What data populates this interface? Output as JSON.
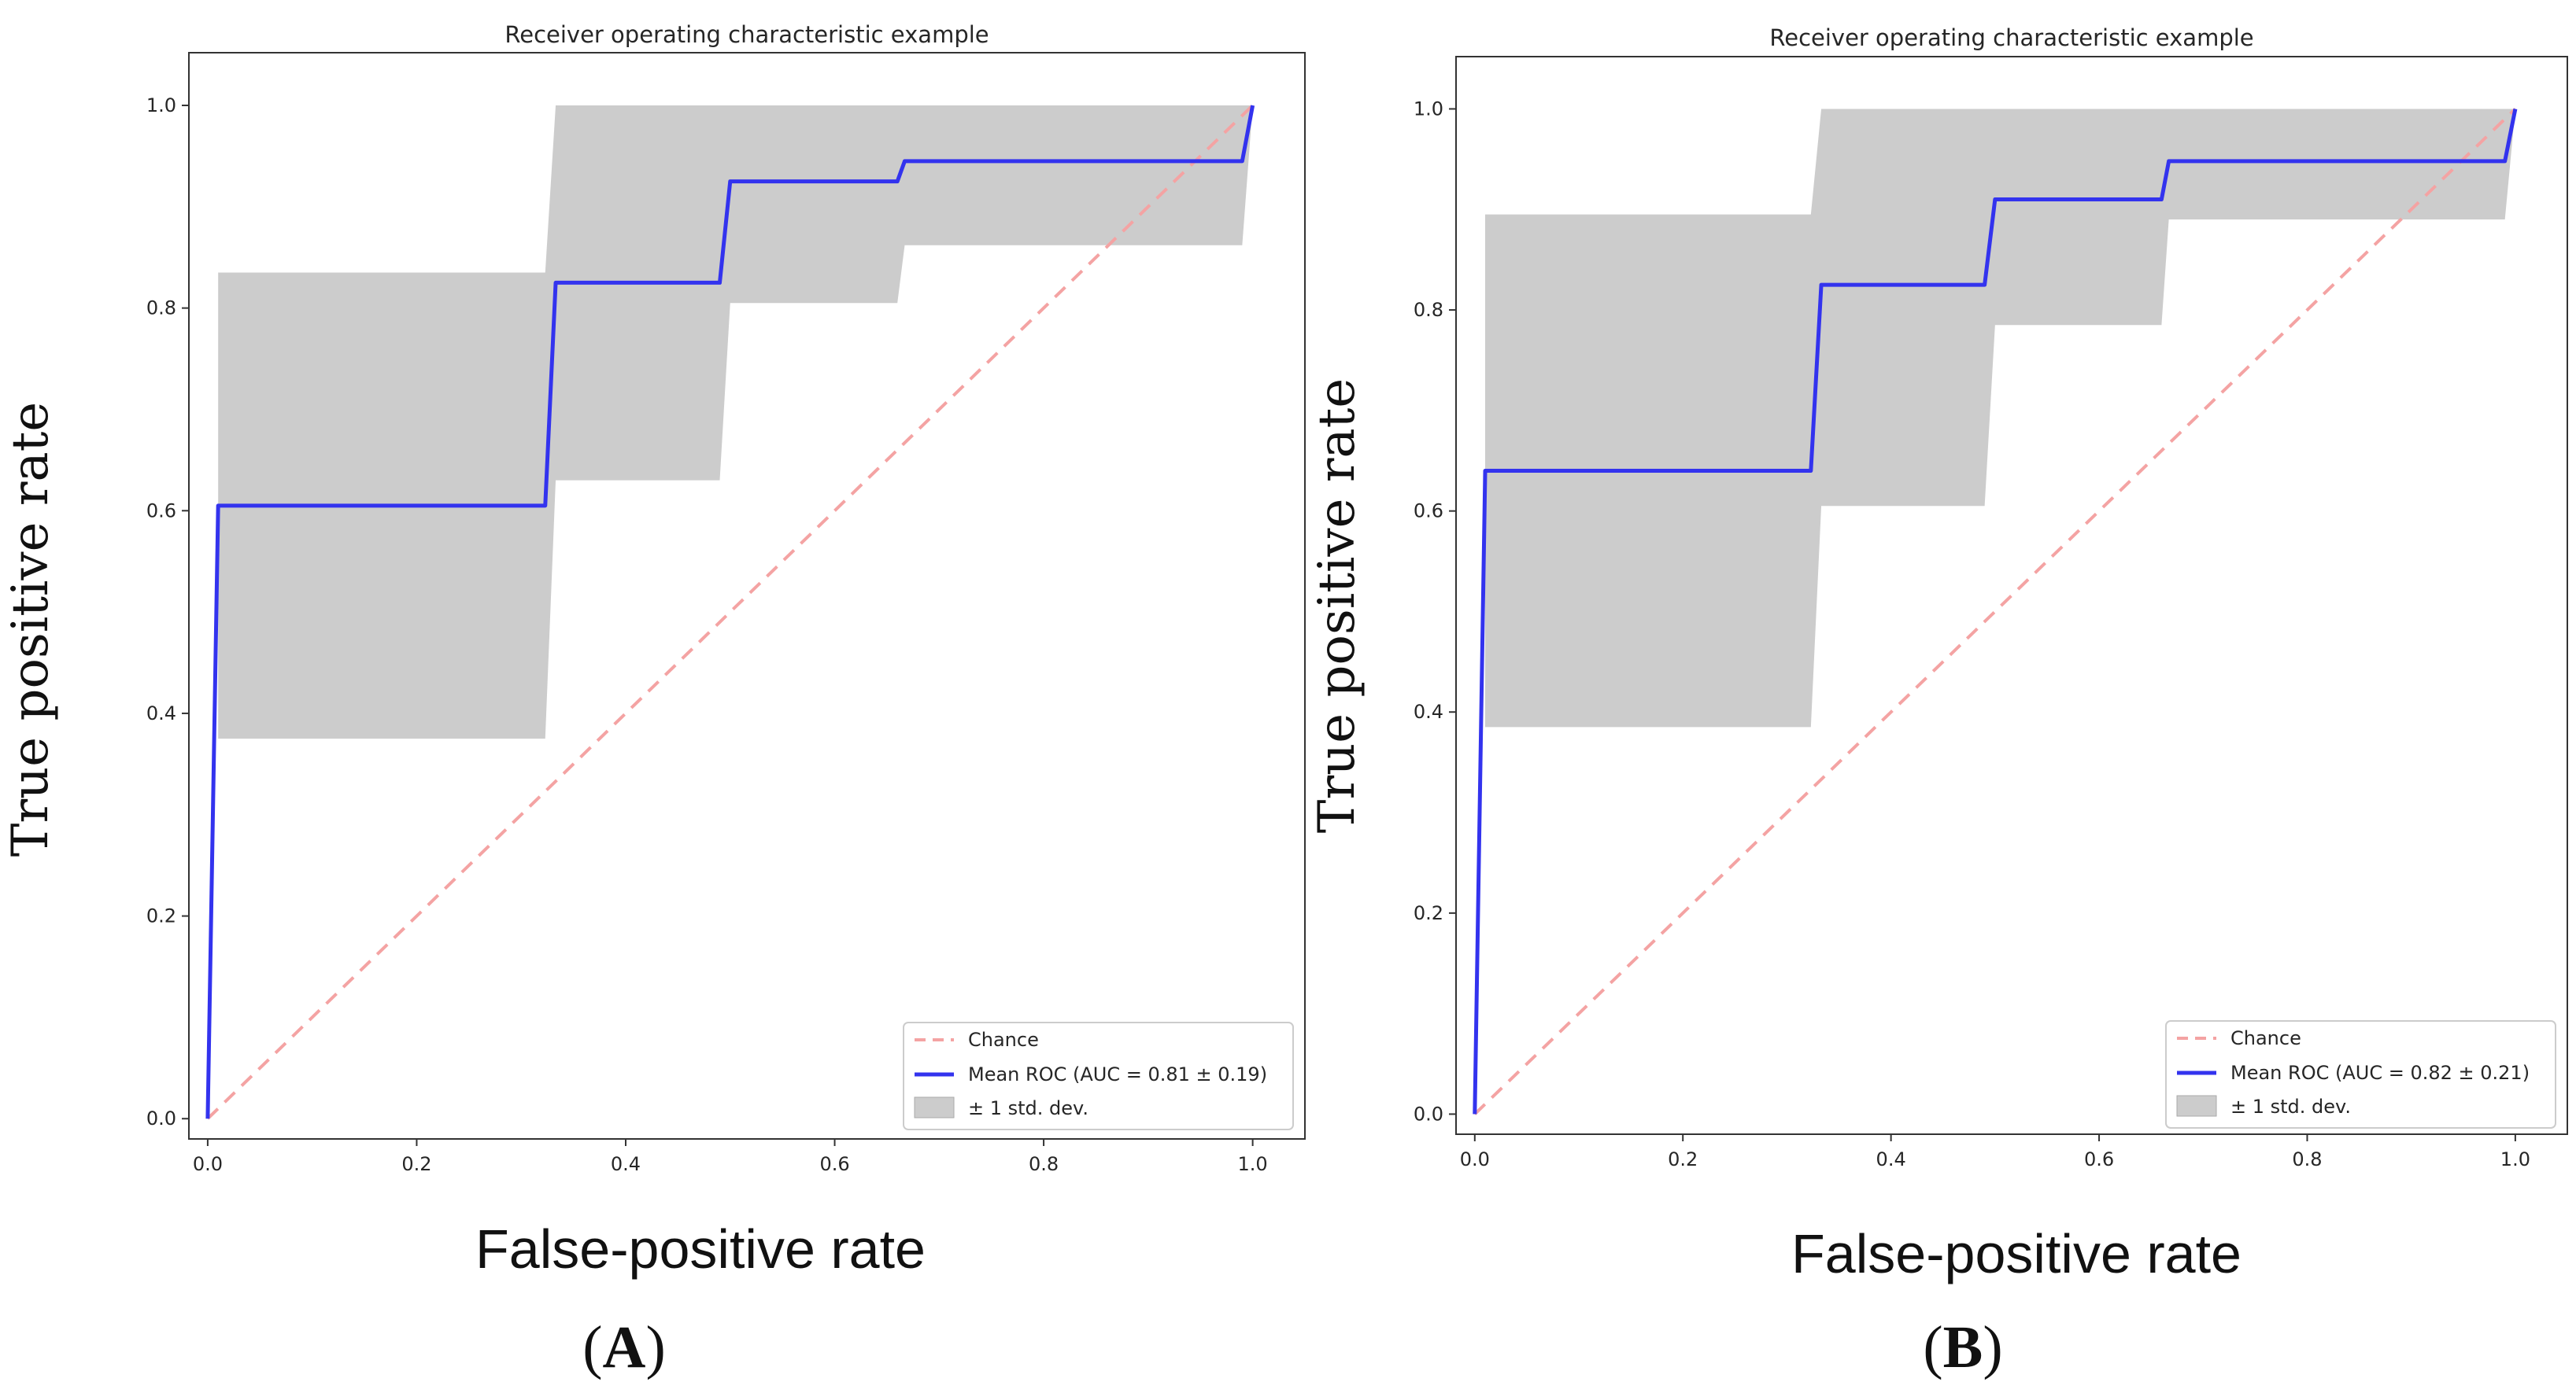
{
  "chart_data": [
    {
      "type": "line",
      "panel": "A",
      "panel_label": {
        "open": "(",
        "letter": "A",
        "close": ")"
      },
      "title": "Receiver operating characteristic example",
      "xlabel": "False-positive rate",
      "ylabel": "True positive rate",
      "xlim": [
        -0.018,
        1.05
      ],
      "ylim": [
        -0.02,
        1.052
      ],
      "xticks": [
        0.0,
        0.2,
        0.4,
        0.6,
        0.8,
        1.0
      ],
      "xtick_labels": [
        "0.0",
        "0.2",
        "0.4",
        "0.6",
        "0.8",
        "1.0"
      ],
      "yticks": [
        0.0,
        0.2,
        0.4,
        0.6,
        0.8,
        1.0
      ],
      "ytick_labels": [
        "0.0",
        "0.2",
        "0.4",
        "0.6",
        "0.8",
        "1.0"
      ],
      "legend_position": "lower right",
      "series": [
        {
          "name": "Chance",
          "style": "dashed",
          "color": "#f4a3a3",
          "x": [
            0,
            1
          ],
          "y": [
            0,
            1
          ]
        },
        {
          "name": "Mean ROC (AUC = 0.81 ± 0.19)",
          "style": "solid",
          "color": "#3333ee",
          "x": [
            0,
            0.01,
            0.323,
            0.333,
            0.49,
            0.5,
            0.66,
            0.667,
            0.99,
            1.0
          ],
          "y": [
            0,
            0.605,
            0.605,
            0.825,
            0.825,
            0.925,
            0.925,
            0.945,
            0.945,
            1.0
          ]
        }
      ],
      "band": {
        "name": "± 1 std. dev.",
        "color": "#cccccc",
        "x": [
          0.01,
          0.323,
          0.333,
          0.49,
          0.5,
          0.66,
          0.667,
          0.99,
          1.0
        ],
        "upper": [
          0.835,
          0.835,
          1.0,
          1.0,
          1.0,
          1.0,
          1.0,
          1.0,
          1.0
        ],
        "lower": [
          0.375,
          0.375,
          0.63,
          0.63,
          0.805,
          0.805,
          0.862,
          0.862,
          1.0
        ]
      }
    },
    {
      "type": "line",
      "panel": "B",
      "panel_label": {
        "open": "(",
        "letter": "B",
        "close": ")"
      },
      "title": "Receiver operating characteristic example",
      "xlabel": "False-positive rate",
      "ylabel": "True positive rate",
      "xlim": [
        -0.018,
        1.05
      ],
      "ylim": [
        -0.02,
        1.052
      ],
      "xticks": [
        0.0,
        0.2,
        0.4,
        0.6,
        0.8,
        1.0
      ],
      "xtick_labels": [
        "0.0",
        "0.2",
        "0.4",
        "0.6",
        "0.8",
        "1.0"
      ],
      "yticks": [
        0.0,
        0.2,
        0.4,
        0.6,
        0.8,
        1.0
      ],
      "ytick_labels": [
        "0.0",
        "0.2",
        "0.4",
        "0.6",
        "0.8",
        "1.0"
      ],
      "legend_position": "lower right",
      "series": [
        {
          "name": "Chance",
          "style": "dashed",
          "color": "#f4a3a3",
          "x": [
            0,
            1
          ],
          "y": [
            0,
            1
          ]
        },
        {
          "name": "Mean ROC (AUC = 0.82 ± 0.21)",
          "style": "solid",
          "color": "#3333ee",
          "x": [
            0,
            0.01,
            0.323,
            0.333,
            0.49,
            0.5,
            0.66,
            0.667,
            0.99,
            1.0
          ],
          "y": [
            0,
            0.64,
            0.64,
            0.825,
            0.825,
            0.91,
            0.91,
            0.948,
            0.948,
            1.0
          ]
        }
      ],
      "band": {
        "name": "± 1 std. dev.",
        "color": "#cccccc",
        "x": [
          0.01,
          0.323,
          0.333,
          0.49,
          0.5,
          0.66,
          0.667,
          0.99,
          1.0
        ],
        "upper": [
          0.895,
          0.895,
          1.0,
          1.0,
          1.0,
          1.0,
          1.0,
          1.0,
          1.0
        ],
        "lower": [
          0.385,
          0.385,
          0.605,
          0.605,
          0.785,
          0.785,
          0.89,
          0.89,
          1.0
        ]
      }
    }
  ]
}
